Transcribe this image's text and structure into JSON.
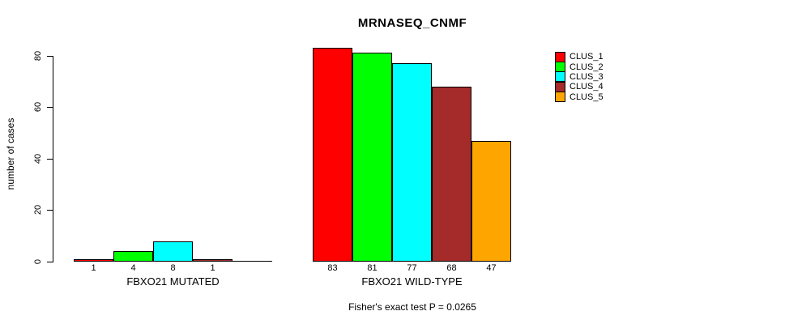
{
  "chart_data": {
    "type": "bar",
    "title": "MRNASEQ_CNMF",
    "ylabel": "number of cases",
    "ylim": [
      0,
      80
    ],
    "yticks": [
      0,
      20,
      40,
      60,
      80
    ],
    "grid": false,
    "legend_position": "top-right",
    "categories": [
      "FBXO21 MUTATED",
      "FBXO21 WILD-TYPE"
    ],
    "series": [
      {
        "name": "CLUS_1",
        "color": "#ff0000",
        "values": [
          1,
          83
        ]
      },
      {
        "name": "CLUS_2",
        "color": "#00ff00",
        "values": [
          4,
          81
        ]
      },
      {
        "name": "CLUS_3",
        "color": "#00ffff",
        "values": [
          8,
          77
        ]
      },
      {
        "name": "CLUS_4",
        "color": "#a52a2a",
        "values": [
          1,
          68
        ]
      },
      {
        "name": "CLUS_5",
        "color": "#ffa500",
        "values": [
          0,
          47
        ]
      }
    ],
    "bar_value_labels": [
      [
        "1",
        "4",
        "8",
        "1",
        ""
      ],
      [
        "83",
        "81",
        "77",
        "68",
        "47"
      ]
    ],
    "annotation": "Fisher's exact test P = 0.0265",
    "axis_color": "#000000",
    "bar_border_color": "#000000"
  }
}
